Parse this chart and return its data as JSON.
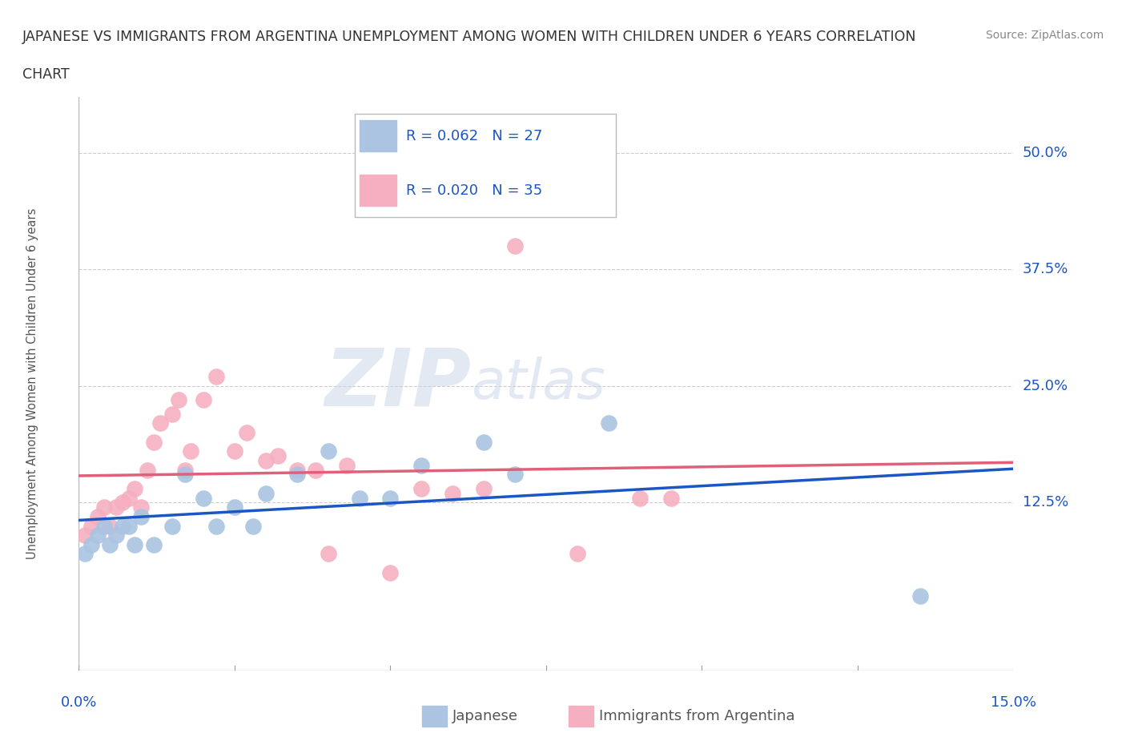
{
  "title_line1": "JAPANESE VS IMMIGRANTS FROM ARGENTINA UNEMPLOYMENT AMONG WOMEN WITH CHILDREN UNDER 6 YEARS CORRELATION",
  "title_line2": "CHART",
  "source": "Source: ZipAtlas.com",
  "ylabel": "Unemployment Among Women with Children Under 6 years",
  "ytick_labels": [
    "12.5%",
    "25.0%",
    "37.5%",
    "50.0%"
  ],
  "ytick_values": [
    0.125,
    0.25,
    0.375,
    0.5
  ],
  "xlim": [
    0.0,
    0.15
  ],
  "ylim": [
    -0.055,
    0.56
  ],
  "watermark_zip": "ZIP",
  "watermark_atlas": "atlas",
  "japanese_R": 0.062,
  "japanese_N": 27,
  "argentina_R": 0.02,
  "argentina_N": 35,
  "japanese_color": "#aac4e2",
  "argentina_color": "#f5afc0",
  "japanese_line_color": "#1a56c4",
  "argentina_line_color": "#e0607a",
  "japanese_x": [
    0.001,
    0.002,
    0.003,
    0.004,
    0.005,
    0.006,
    0.007,
    0.008,
    0.009,
    0.01,
    0.012,
    0.015,
    0.017,
    0.02,
    0.022,
    0.025,
    0.028,
    0.03,
    0.035,
    0.04,
    0.045,
    0.05,
    0.055,
    0.065,
    0.07,
    0.085,
    0.135
  ],
  "japanese_y": [
    0.07,
    0.08,
    0.09,
    0.1,
    0.08,
    0.09,
    0.1,
    0.1,
    0.08,
    0.11,
    0.08,
    0.1,
    0.155,
    0.13,
    0.1,
    0.12,
    0.1,
    0.135,
    0.155,
    0.18,
    0.13,
    0.13,
    0.165,
    0.19,
    0.155,
    0.21,
    0.025
  ],
  "argentina_x": [
    0.001,
    0.002,
    0.003,
    0.004,
    0.005,
    0.006,
    0.007,
    0.008,
    0.009,
    0.01,
    0.011,
    0.012,
    0.013,
    0.015,
    0.016,
    0.017,
    0.018,
    0.02,
    0.022,
    0.025,
    0.027,
    0.03,
    0.032,
    0.035,
    0.038,
    0.04,
    0.043,
    0.05,
    0.055,
    0.06,
    0.065,
    0.07,
    0.08,
    0.09,
    0.095
  ],
  "argentina_y": [
    0.09,
    0.1,
    0.11,
    0.12,
    0.1,
    0.12,
    0.125,
    0.13,
    0.14,
    0.12,
    0.16,
    0.19,
    0.21,
    0.22,
    0.235,
    0.16,
    0.18,
    0.235,
    0.26,
    0.18,
    0.2,
    0.17,
    0.175,
    0.16,
    0.16,
    0.07,
    0.165,
    0.05,
    0.14,
    0.135,
    0.14,
    0.4,
    0.07,
    0.13,
    0.13
  ],
  "grid_color": "#cccccc",
  "background_color": "#ffffff",
  "title_color": "#333333",
  "axis_label_color": "#1a56c4"
}
